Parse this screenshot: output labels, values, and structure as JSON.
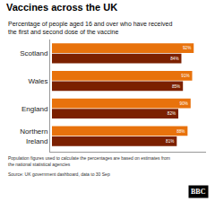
{
  "chart_data": {
    "type": "bar",
    "orientation": "horizontal",
    "title": "Vaccines across the UK",
    "subtitle": [
      "Percentage of people aged 16 and over who have received",
      "the first and second dose of the vaccine"
    ],
    "categories": [
      "Scotland",
      "Wales",
      "England",
      "Northern\nIreland"
    ],
    "series": [
      {
        "color": "#E8720C",
        "values": [
          92,
          91,
          90,
          88
        ],
        "value_labels": [
          "92%",
          "91%",
          "90%",
          "88%"
        ]
      },
      {
        "color": "#7B2000",
        "values": [
          84,
          85,
          82,
          81
        ],
        "value_labels": [
          "84%",
          "85%",
          "82%",
          "81%"
        ]
      }
    ],
    "xlim": [
      0,
      100
    ],
    "data_labels": true,
    "tick_labels": "y",
    "grid": false,
    "annotations": [
      "Population figures used to calculate the percentages are based on estimates from",
      "the national statistical agencies",
      "Source: UK government dashboard, data to 30 Sep",
      "BBC"
    ]
  }
}
